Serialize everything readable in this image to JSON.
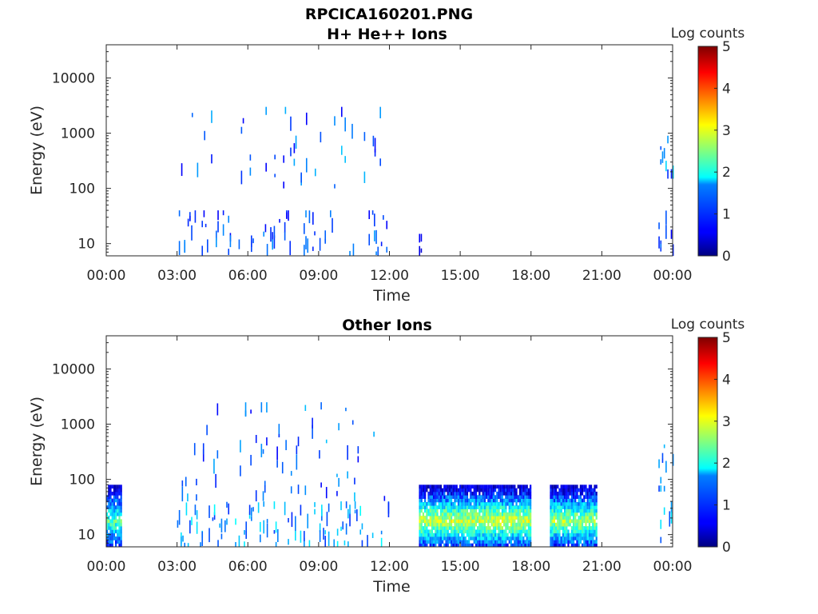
{
  "figure": {
    "title": "RPCICA160201.PNG"
  },
  "chart_data": [
    {
      "type": "heatmap",
      "title": "H+ He++ Ions",
      "xlabel": "Time",
      "ylabel": "Energy (eV)",
      "x_ticks": [
        "00:00",
        "03:00",
        "06:00",
        "09:00",
        "12:00",
        "15:00",
        "18:00",
        "21:00",
        "00:00"
      ],
      "x_range_hours": [
        0,
        24
      ],
      "y_scale": "log",
      "y_ticks": [
        "10",
        "100",
        "1000",
        "10000"
      ],
      "y_range": [
        6,
        40000
      ],
      "colorbar": {
        "label": "Log counts",
        "ticks": [
          "0",
          "1",
          "2",
          "3",
          "4",
          "5"
        ],
        "range": [
          0,
          5
        ],
        "colormap": "jet"
      },
      "bands": [],
      "sparse": [
        {
          "start_h": 3.0,
          "end_h": 12.0,
          "e_min": 6,
          "e_max": 40,
          "density": 0.45,
          "level": [
            0.6,
            1.4
          ]
        },
        {
          "start_h": 3.1,
          "end_h": 11.7,
          "e_min": 100,
          "e_max": 3000,
          "density": 0.25,
          "level": [
            0.6,
            1.6
          ]
        },
        {
          "start_h": 13.25,
          "end_h": 13.35,
          "e_min": 6,
          "e_max": 15,
          "density": 1.0,
          "level": [
            0.4,
            0.8
          ]
        },
        {
          "start_h": 23.4,
          "end_h": 24.0,
          "e_min": 6,
          "e_max": 40,
          "density": 0.6,
          "level": [
            0.6,
            1.2
          ]
        },
        {
          "start_h": 23.4,
          "end_h": 24.0,
          "e_min": 150,
          "e_max": 900,
          "density": 0.5,
          "level": [
            0.8,
            1.8
          ]
        }
      ]
    },
    {
      "type": "heatmap",
      "title": "Other Ions",
      "xlabel": "Time",
      "ylabel": "Energy (eV)",
      "x_ticks": [
        "00:00",
        "03:00",
        "06:00",
        "09:00",
        "12:00",
        "15:00",
        "18:00",
        "21:00",
        "00:00"
      ],
      "x_range_hours": [
        0,
        24
      ],
      "y_scale": "log",
      "y_ticks": [
        "10",
        "100",
        "1000",
        "10000"
      ],
      "y_range": [
        6,
        40000
      ],
      "colorbar": {
        "label": "Log counts",
        "ticks": [
          "0",
          "1",
          "2",
          "3",
          "4",
          "5"
        ],
        "range": [
          0,
          5
        ],
        "colormap": "jet"
      },
      "bands": [
        {
          "start_h": 0.0,
          "end_h": 0.6,
          "e_min": 6,
          "e_max": 80,
          "peak_e": 18,
          "peak_level": 2.3
        },
        {
          "start_h": 13.25,
          "end_h": 18.0,
          "e_min": 6,
          "e_max": 80,
          "peak_e": 18,
          "peak_level": 2.9
        },
        {
          "start_h": 18.8,
          "end_h": 20.8,
          "e_min": 6,
          "e_max": 80,
          "peak_e": 18,
          "peak_level": 2.7
        }
      ],
      "sparse": [
        {
          "start_h": 3.0,
          "end_h": 12.0,
          "e_min": 6,
          "e_max": 40,
          "density": 0.55,
          "level": [
            0.8,
            1.9
          ]
        },
        {
          "start_h": 3.2,
          "end_h": 11.8,
          "e_min": 40,
          "e_max": 2500,
          "density": 0.35,
          "level": [
            0.6,
            1.6
          ]
        },
        {
          "start_h": 23.4,
          "end_h": 24.0,
          "e_min": 6,
          "e_max": 40,
          "density": 0.6,
          "level": [
            1.0,
            2.0
          ]
        },
        {
          "start_h": 23.4,
          "end_h": 24.0,
          "e_min": 60,
          "e_max": 600,
          "density": 0.5,
          "level": [
            0.8,
            1.6
          ]
        }
      ]
    }
  ]
}
